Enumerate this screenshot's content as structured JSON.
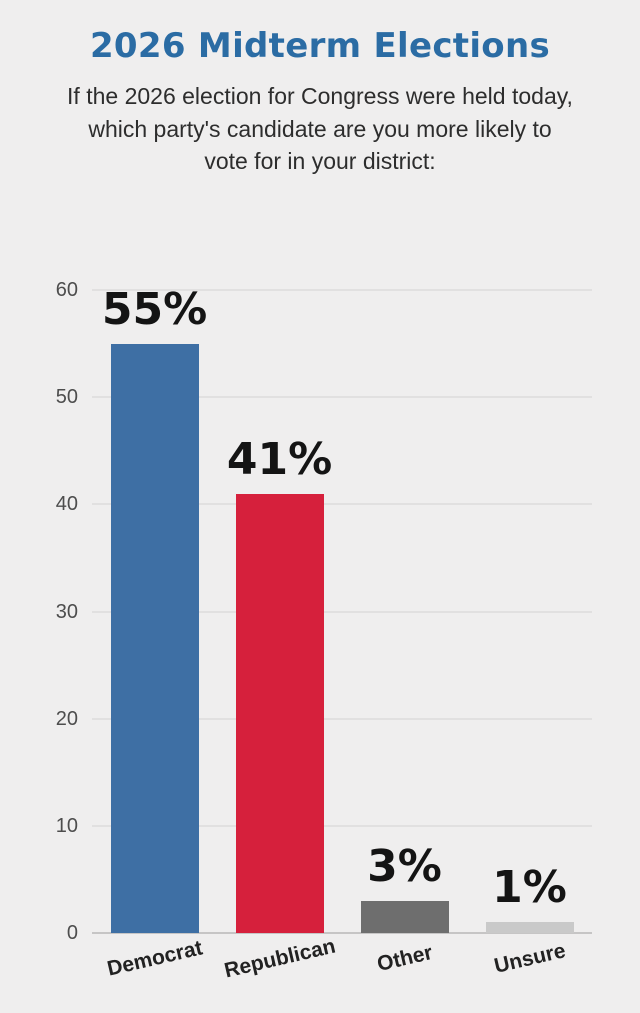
{
  "page": {
    "background": "#efeeee"
  },
  "header": {
    "title": "2026 Midterm Elections",
    "subtitle": "If the 2026 election for Congress were held today, which party's candidate are you more likely to vote for in your district:"
  },
  "chart_data": {
    "type": "bar",
    "title": "2026 Midterm Elections",
    "subtitle": "If the 2026 election for Congress were held today, which party's candidate are you more likely to vote for in your district:",
    "categories": [
      "Democrat",
      "Republican",
      "Other",
      "Unsure"
    ],
    "values": [
      55,
      41,
      3,
      1
    ],
    "value_labels": [
      "55%",
      "41%",
      "3%",
      "1%"
    ],
    "bar_colors": [
      "#3e6fa4",
      "#d6203c",
      "#6e6e6e",
      "#c9c9c9"
    ],
    "xlabel": "",
    "ylabel": "",
    "ylim": [
      0,
      60
    ],
    "yticks": [
      0,
      10,
      20,
      30,
      40,
      50,
      60
    ],
    "grid": true,
    "legend": false
  },
  "colors": {
    "title_text": "#2b6ca4",
    "subtitle_text": "#2d2d2d",
    "gridline": "#e1e0e0",
    "baseline": "#c6c5c5",
    "axis_tick_text": "#4d4d4d",
    "value_label_text": "#141414",
    "category_label_text": "#222222"
  }
}
